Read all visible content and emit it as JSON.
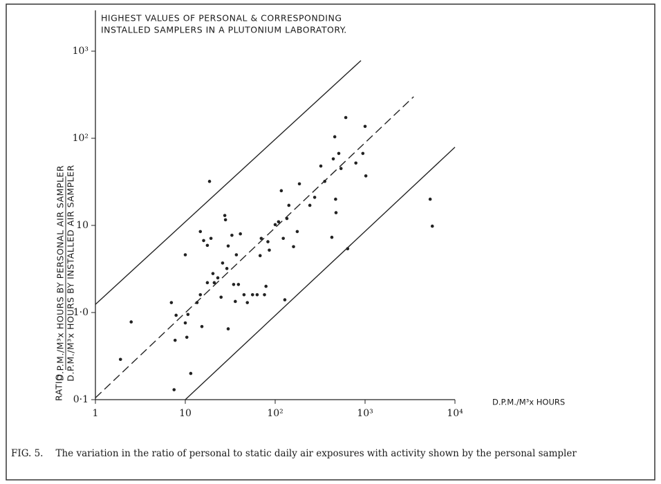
{
  "chart_data": {
    "type": "scatter",
    "title_lines": [
      "HIGHEST VALUES OF PERSONAL & CORRESPONDING",
      "INSTALLED SAMPLERS IN A PLUTONIUM LABORATORY."
    ],
    "y_label_prefix": "RATIO",
    "y_label_numerator": "D.P.M./M³x HOURS BY PERSONAL AIR SAMPLER",
    "y_label_denominator": "D.P.M./M³x HOURS BY INSTALLED AIR SAMPLER",
    "x_label": "D.P.M./M³x HOURS",
    "xscale": "log",
    "yscale": "log",
    "xlim": [
      1,
      10000
    ],
    "ylim": [
      0.1,
      1000
    ],
    "xticks": [
      1,
      10,
      {
        "value": 100,
        "label": "10²"
      },
      {
        "value": 1000,
        "label": "10³"
      },
      {
        "value": 10000,
        "label": "10⁴"
      }
    ],
    "yticks": [
      {
        "value": 0.1,
        "label": "0·1"
      },
      {
        "value": 1,
        "label": "1·0"
      },
      10,
      {
        "value": 100,
        "label": "10²"
      },
      {
        "value": 1000,
        "label": "10³"
      }
    ],
    "grid": false,
    "color": "#222222",
    "x": [
      1.9,
      2.5,
      7.0,
      7.9,
      7.7,
      10,
      10.4,
      10,
      10.7,
      11.5,
      7.5,
      13.5,
      14.7,
      15.3,
      14.7,
      16,
      17.6,
      18.6,
      17.6,
      19.3,
      20.3,
      21,
      23,
      25,
      26,
      27.5,
      28,
      29,
      30,
      30,
      33,
      34.5,
      36,
      37,
      39,
      41,
      45,
      49,
      56,
      63,
      68,
      70,
      76,
      79,
      83,
      86,
      100,
      109,
      117,
      123,
      128,
      135,
      142,
      160,
      176,
      186,
      243,
      275,
      322,
      356,
      427,
      443,
      460,
      470,
      475,
      510,
      540,
      610,
      640,
      790,
      945,
      1000,
      1020,
      5300,
      5600
    ],
    "values": [
      0.29,
      0.78,
      1.3,
      0.93,
      0.48,
      0.76,
      0.52,
      4.6,
      0.95,
      0.2,
      0.13,
      1.3,
      1.6,
      0.69,
      8.5,
      6.7,
      2.2,
      32,
      5.9,
      7.1,
      2.8,
      2.2,
      2.5,
      1.5,
      3.7,
      13,
      11.6,
      3.2,
      0.65,
      5.8,
      7.7,
      2.1,
      1.34,
      4.6,
      2.1,
      8.0,
      1.6,
      1.3,
      1.6,
      1.6,
      4.5,
      7.1,
      1.6,
      2.0,
      6.5,
      5.2,
      10.2,
      11,
      25,
      7.1,
      1.4,
      12,
      17,
      5.7,
      8.5,
      30,
      17,
      21,
      48,
      32,
      7.3,
      58,
      104,
      20,
      14,
      67,
      45,
      173,
      5.4,
      52,
      67,
      137,
      37,
      20,
      9.8
    ],
    "reference_lines": [
      {
        "style": "solid",
        "x": [
          1,
          900
        ],
        "y": [
          1.24,
          780
        ]
      },
      {
        "style": "dashed",
        "x": [
          1,
          3470
        ],
        "y": [
          0.105,
          300
        ]
      },
      {
        "style": "solid",
        "x": [
          10,
          10000
        ],
        "y": [
          0.1,
          79
        ]
      }
    ],
    "caption_label": "FIG. 5.",
    "caption": "The variation in the ratio of personal to static daily air exposures with activity shown by the personal sampler"
  }
}
